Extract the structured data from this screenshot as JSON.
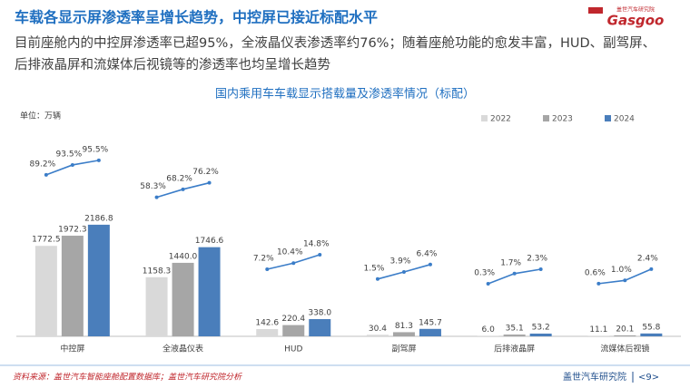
{
  "header": {
    "title": "车载各显示屏渗透率呈增长趋势，中控屏已接近标配水平",
    "subtitle": [
      "目前座舱内的中控屏渗透率已超95%，全液晶仪表渗透率约76%；随着座舱功能的愈发丰富，HUD、副驾屏、",
      "后排液晶屏和流媒体后视镜等的渗透率也均呈增长趋势"
    ]
  },
  "logo": {
    "text": "Gasgoo",
    "sub": "盖世汽车研究院"
  },
  "chart_data": {
    "type": "bar",
    "title": "国内乘用车车载显示搭载量及渗透率情况（标配）",
    "unit": "单位：万辆",
    "categories": [
      "中控屏",
      "全液晶仪表",
      "HUD",
      "副驾屏",
      "后排液晶屏",
      "流媒体后视镜"
    ],
    "series": [
      {
        "name": "2022",
        "color": "#d9d9d9",
        "values": [
          1772.5,
          1158.3,
          142.6,
          30.4,
          6.0,
          11.1
        ],
        "value_labels": [
          "1772.5",
          "1158.3",
          "142.6",
          "30.4",
          "6.0",
          "11.1"
        ]
      },
      {
        "name": "2023",
        "color": "#a6a6a6",
        "values": [
          1972.3,
          1440.0,
          220.4,
          81.3,
          35.1,
          20.1
        ],
        "value_labels": [
          "1972.3",
          "1440.0",
          "220.4",
          "81.3",
          "35.1",
          "20.1"
        ]
      },
      {
        "name": "2024",
        "color": "#4a7ebb",
        "values": [
          2186.8,
          1746.6,
          338.0,
          145.7,
          53.2,
          55.8
        ],
        "value_labels": [
          "2186.8",
          "1746.6",
          "338.0",
          "145.7",
          "53.2",
          "55.8"
        ]
      }
    ],
    "penetration_color": "#3b7dc8",
    "penetration": [
      {
        "values": [
          89.2,
          93.5,
          95.5
        ],
        "value_labels": [
          "89.2%",
          "93.5%",
          "95.5%"
        ]
      },
      {
        "values": [
          58.3,
          68.2,
          76.2
        ],
        "value_labels": [
          "58.3%",
          "68.2%",
          "76.2%"
        ]
      },
      {
        "values": [
          7.2,
          10.4,
          14.8
        ],
        "value_labels": [
          "7.2%",
          "10.4%",
          "14.8%"
        ]
      },
      {
        "values": [
          1.5,
          3.9,
          6.4
        ],
        "value_labels": [
          "1.5%",
          "3.9%",
          "6.4%"
        ]
      },
      {
        "values": [
          0.3,
          1.7,
          2.3
        ],
        "value_labels": [
          "0.3%",
          "1.7%",
          "2.3%"
        ]
      },
      {
        "values": [
          0.6,
          1.0,
          2.4
        ],
        "value_labels": [
          "0.6%",
          "1.0%",
          "2.4%"
        ]
      }
    ]
  },
  "footer": {
    "source": "资料来源：盖世汽车智能座舱配置数据库；盖世汽车研究院分析",
    "company": "盖世汽车研究院",
    "page": "<9>"
  }
}
